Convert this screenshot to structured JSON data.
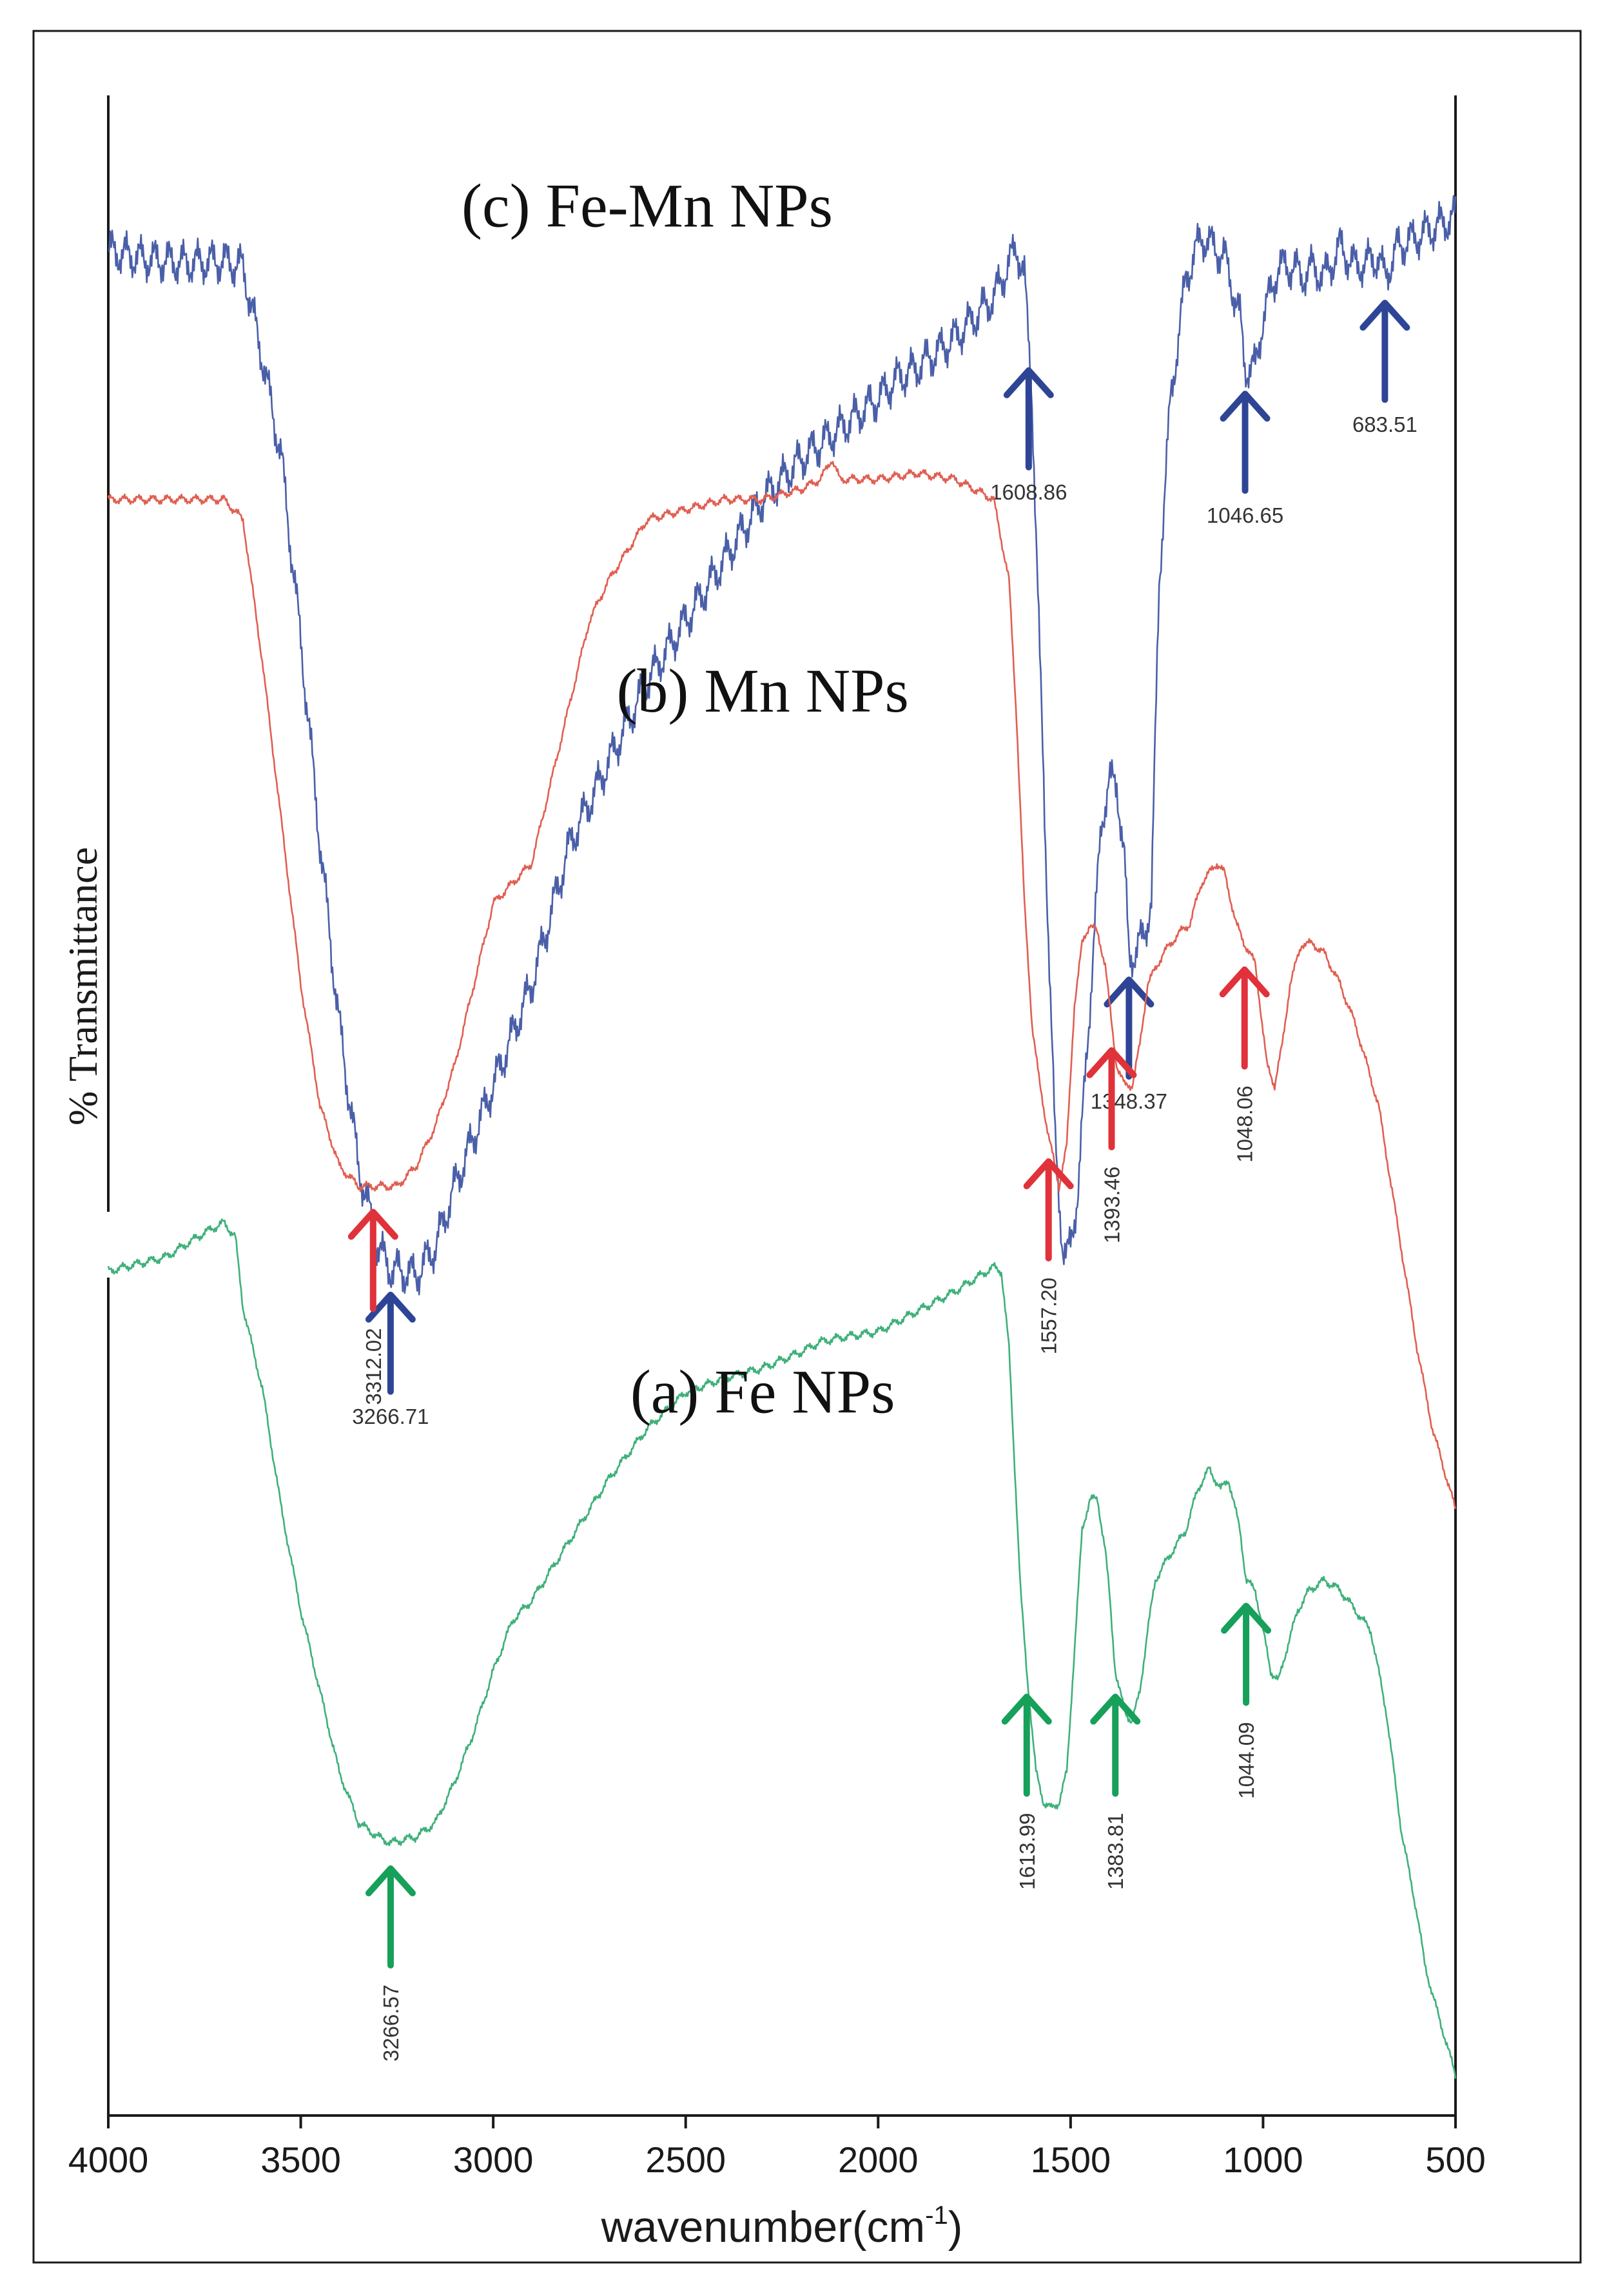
{
  "chart_data": {
    "type": "line",
    "title": "",
    "xlabel": "wavenumber(cm",
    "xlabel_sup": "-1",
    "xlabel_close": ")",
    "ylabel": "% Transmittance",
    "xlim": [
      4000,
      500
    ],
    "ylim": [
      0,
      100
    ],
    "x_reversed": true,
    "x_ticks": [
      4000,
      3500,
      3000,
      2500,
      2000,
      1500,
      1000,
      500
    ],
    "y_ticks": [],
    "grid": false,
    "legend": "none",
    "series": [
      {
        "name": "(c) Fe-Mn NPs",
        "color": "#4a5fa8",
        "arrow_color": "#2e4596",
        "noise": 1.2,
        "points": [
          [
            4000,
            92.3
          ],
          [
            3900,
            91.9
          ],
          [
            3800,
            91.7
          ],
          [
            3700,
            91.8
          ],
          [
            3650,
            91.5
          ],
          [
            3600,
            87
          ],
          [
            3550,
            82
          ],
          [
            3500,
            73
          ],
          [
            3450,
            63
          ],
          [
            3400,
            54
          ],
          [
            3350,
            47
          ],
          [
            3300,
            43
          ],
          [
            3266.71,
            41.9
          ],
          [
            3200,
            41.6
          ],
          [
            3150,
            43
          ],
          [
            3100,
            46
          ],
          [
            3000,
            51
          ],
          [
            2900,
            56
          ],
          [
            2800,
            63
          ],
          [
            2700,
            67
          ],
          [
            2600,
            71
          ],
          [
            2500,
            74
          ],
          [
            2400,
            77
          ],
          [
            2300,
            80
          ],
          [
            2200,
            82
          ],
          [
            2100,
            83.5
          ],
          [
            2000,
            85
          ],
          [
            1950,
            86
          ],
          [
            1900,
            86.5
          ],
          [
            1800,
            88
          ],
          [
            1700,
            90
          ],
          [
            1640,
            92.5
          ],
          [
            1620,
            91
          ],
          [
            1600,
            85
          ],
          [
            1580,
            72
          ],
          [
            1560,
            60
          ],
          [
            1540,
            48
          ],
          [
            1520,
            43
          ],
          [
            1510,
            42.5
          ],
          [
            1500,
            43
          ],
          [
            1480,
            46
          ],
          [
            1460,
            52
          ],
          [
            1440,
            58
          ],
          [
            1420,
            64
          ],
          [
            1400,
            66
          ],
          [
            1380,
            66
          ],
          [
            1360,
            62
          ],
          [
            1348.37,
            57.5
          ],
          [
            1330,
            57.5
          ],
          [
            1310,
            58.5
          ],
          [
            1290,
            60
          ],
          [
            1270,
            76
          ],
          [
            1240,
            85
          ],
          [
            1200,
            91
          ],
          [
            1160,
            93
          ],
          [
            1100,
            92
          ],
          [
            1060,
            89
          ],
          [
            1046.65,
            86.5
          ],
          [
            1020,
            86.5
          ],
          [
            1000,
            89
          ],
          [
            960,
            91.5
          ],
          [
            920,
            91.5
          ],
          [
            900,
            91
          ],
          [
            870,
            91.5
          ],
          [
            840,
            91
          ],
          [
            800,
            92.5
          ],
          [
            760,
            91.5
          ],
          [
            700,
            92
          ],
          [
            683.51,
            91
          ],
          [
            650,
            92.5
          ],
          [
            600,
            93
          ],
          [
            550,
            93.5
          ],
          [
            500,
            94
          ]
        ],
        "label_at": [
          2600,
          93.5
        ],
        "arrows": [
          {
            "x": 3266.71,
            "label": "3266.71"
          },
          {
            "x": 1608.86,
            "label": "1608.86"
          },
          {
            "x": 1348.37,
            "label": "1348.37"
          },
          {
            "x": 1046.65,
            "label": "1046.65"
          },
          {
            "x": 683.51,
            "label": "683.51"
          }
        ]
      },
      {
        "name": "(b) Mn NPs",
        "color": "#e05f52",
        "arrow_color": "#e0323a",
        "noise": 0.25,
        "points": [
          [
            4000,
            80
          ],
          [
            3850,
            80
          ],
          [
            3750,
            80
          ],
          [
            3700,
            80
          ],
          [
            3650,
            79
          ],
          [
            3600,
            72
          ],
          [
            3550,
            64
          ],
          [
            3500,
            56
          ],
          [
            3450,
            50
          ],
          [
            3400,
            47
          ],
          [
            3350,
            46
          ],
          [
            3312.02,
            46
          ],
          [
            3250,
            46
          ],
          [
            3200,
            47
          ],
          [
            3150,
            49
          ],
          [
            3100,
            52
          ],
          [
            3050,
            56
          ],
          [
            3000,
            60
          ],
          [
            2950,
            61
          ],
          [
            2900,
            62
          ],
          [
            2850,
            66
          ],
          [
            2800,
            70
          ],
          [
            2750,
            74
          ],
          [
            2700,
            76
          ],
          [
            2600,
            79
          ],
          [
            2500,
            79.5
          ],
          [
            2400,
            80
          ],
          [
            2300,
            80
          ],
          [
            2200,
            80.5
          ],
          [
            2150,
            81
          ],
          [
            2120,
            82
          ],
          [
            2100,
            81
          ],
          [
            2000,
            81
          ],
          [
            1900,
            81.3
          ],
          [
            1800,
            81
          ],
          [
            1700,
            80
          ],
          [
            1660,
            76
          ],
          [
            1640,
            69
          ],
          [
            1620,
            60
          ],
          [
            1600,
            54
          ],
          [
            1580,
            51
          ],
          [
            1557.2,
            48.5
          ],
          [
            1530,
            46
          ],
          [
            1510,
            48
          ],
          [
            1490,
            55
          ],
          [
            1470,
            58
          ],
          [
            1450,
            59
          ],
          [
            1430,
            58.5
          ],
          [
            1410,
            57
          ],
          [
            1393.46,
            54
          ],
          [
            1380,
            52
          ],
          [
            1360,
            51
          ],
          [
            1340,
            51
          ],
          [
            1320,
            53
          ],
          [
            1300,
            56
          ],
          [
            1260,
            57.5
          ],
          [
            1220,
            58.5
          ],
          [
            1190,
            59
          ],
          [
            1160,
            61
          ],
          [
            1120,
            62
          ],
          [
            1100,
            61.5
          ],
          [
            1070,
            59
          ],
          [
            1048.06,
            58
          ],
          [
            1020,
            57
          ],
          [
            990,
            52
          ],
          [
            970,
            51
          ],
          [
            950,
            53
          ],
          [
            930,
            56
          ],
          [
            900,
            58
          ],
          [
            870,
            58
          ],
          [
            840,
            57.5
          ],
          [
            800,
            56
          ],
          [
            760,
            54
          ],
          [
            700,
            50
          ],
          [
            650,
            44
          ],
          [
            600,
            38
          ],
          [
            560,
            34
          ],
          [
            530,
            32
          ],
          [
            500,
            30
          ]
        ],
        "label_at": [
          2300,
          69.5
        ],
        "arrows": [
          {
            "x": 3312.02,
            "label": "3312.02"
          },
          {
            "x": 1557.2,
            "label": "1557.20"
          },
          {
            "x": 1393.46,
            "label": "1393.46"
          },
          {
            "x": 1048.06,
            "label": "1048.06"
          }
        ]
      },
      {
        "name": "(a) Fe NPs",
        "color": "#3fb07a",
        "arrow_color": "#16a05a",
        "noise": 0.25,
        "points": [
          [
            4000,
            41.8
          ],
          [
            3850,
            42.5
          ],
          [
            3750,
            43.7
          ],
          [
            3700,
            44.2
          ],
          [
            3670,
            43.5
          ],
          [
            3650,
            40
          ],
          [
            3600,
            36
          ],
          [
            3550,
            30
          ],
          [
            3500,
            25
          ],
          [
            3450,
            21
          ],
          [
            3400,
            17
          ],
          [
            3350,
            14.5
          ],
          [
            3300,
            13.8
          ],
          [
            3266.57,
            13.5
          ],
          [
            3200,
            13.8
          ],
          [
            3150,
            14.5
          ],
          [
            3100,
            16.5
          ],
          [
            3050,
            19
          ],
          [
            3000,
            22
          ],
          [
            2950,
            24.5
          ],
          [
            2900,
            25.5
          ],
          [
            2850,
            27
          ],
          [
            2800,
            28.5
          ],
          [
            2700,
            31.5
          ],
          [
            2600,
            34
          ],
          [
            2500,
            35.8
          ],
          [
            2400,
            36.5
          ],
          [
            2300,
            37
          ],
          [
            2200,
            37.8
          ],
          [
            2150,
            38.3
          ],
          [
            2100,
            38.5
          ],
          [
            2000,
            38.8
          ],
          [
            1950,
            39.3
          ],
          [
            1900,
            39.8
          ],
          [
            1850,
            40.3
          ],
          [
            1800,
            40.8
          ],
          [
            1750,
            41.4
          ],
          [
            1700,
            42
          ],
          [
            1680,
            41.8
          ],
          [
            1660,
            38
          ],
          [
            1640,
            30
          ],
          [
            1630,
            26
          ],
          [
            1613.99,
            22
          ],
          [
            1590,
            17
          ],
          [
            1570,
            15.5
          ],
          [
            1550,
            15.2
          ],
          [
            1530,
            15.5
          ],
          [
            1510,
            17
          ],
          [
            1490,
            23
          ],
          [
            1470,
            29
          ],
          [
            1450,
            30.5
          ],
          [
            1430,
            30.5
          ],
          [
            1410,
            28
          ],
          [
            1400,
            26
          ],
          [
            1383.81,
            22
          ],
          [
            1360,
            20
          ],
          [
            1340,
            19.5
          ],
          [
            1320,
            21
          ],
          [
            1300,
            24
          ],
          [
            1280,
            26.5
          ],
          [
            1250,
            27.5
          ],
          [
            1200,
            29
          ],
          [
            1170,
            31
          ],
          [
            1140,
            32
          ],
          [
            1110,
            31
          ],
          [
            1090,
            31.5
          ],
          [
            1060,
            29
          ],
          [
            1044.09,
            26.5
          ],
          [
            1020,
            26
          ],
          [
            1000,
            24
          ],
          [
            980,
            22
          ],
          [
            960,
            21.5
          ],
          [
            940,
            23
          ],
          [
            910,
            25
          ],
          [
            880,
            26
          ],
          [
            840,
            26.5
          ],
          [
            800,
            26
          ],
          [
            760,
            25
          ],
          [
            720,
            24
          ],
          [
            680,
            20
          ],
          [
            640,
            14
          ],
          [
            600,
            10
          ],
          [
            580,
            7.5
          ],
          [
            560,
            6
          ],
          [
            530,
            4
          ],
          [
            500,
            2
          ]
        ],
        "label_at": [
          2300,
          34.8
        ],
        "arrows": [
          {
            "x": 3266.57,
            "label": "3266.57"
          },
          {
            "x": 1613.99,
            "label": "1613.99"
          },
          {
            "x": 1383.81,
            "label": "1383.81"
          },
          {
            "x": 1044.09,
            "label": "1044.09"
          }
        ]
      }
    ]
  }
}
